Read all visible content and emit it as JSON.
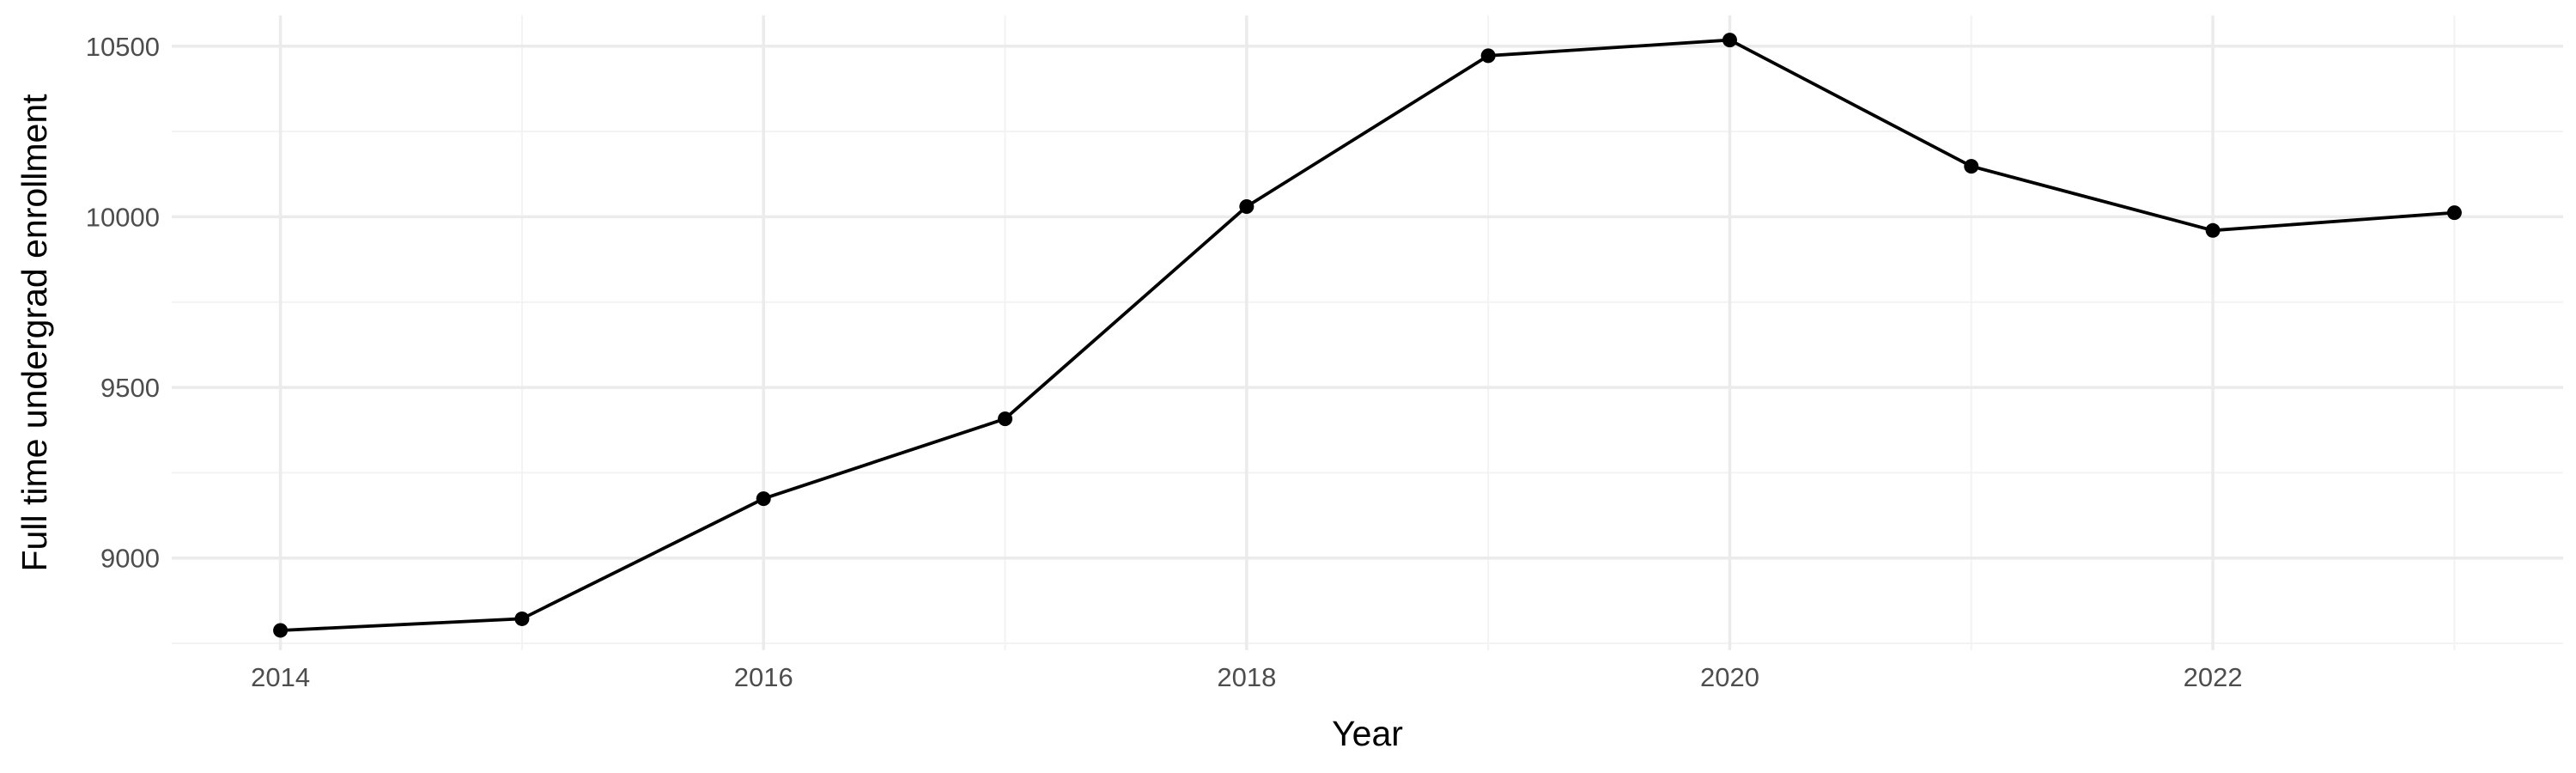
{
  "chart_data": {
    "type": "line",
    "title": "",
    "xlabel": "Year",
    "ylabel": "Full time undergrad enrollment",
    "x": [
      2014,
      2015,
      2016,
      2017,
      2018,
      2019,
      2020,
      2021,
      2022,
      2023
    ],
    "series": [
      {
        "values": [
          8788,
          8822,
          9174,
          9408,
          10030,
          10472,
          10518,
          10148,
          9960,
          10012
        ]
      }
    ],
    "xlim": [
      2013.55,
      2023.45
    ],
    "ylim": [
      8730,
      10590
    ],
    "x_major_ticks": [
      2014,
      2016,
      2018,
      2020,
      2022
    ],
    "x_minor_ticks": [
      2015,
      2017,
      2019,
      2021,
      2023
    ],
    "y_major_ticks": [
      9000,
      9500,
      10000,
      10500
    ],
    "y_minor_ticks": [
      8750,
      9250,
      9750,
      10250
    ],
    "x_tick_labels": [
      "2014",
      "2016",
      "2018",
      "2020",
      "2022"
    ],
    "y_tick_labels": [
      "9000",
      "9500",
      "10000",
      "10500"
    ],
    "grid": true,
    "legend": "none",
    "line_color": "#000000",
    "point_color": "#000000",
    "grid_color": "#ebebeb",
    "background": "#ffffff"
  }
}
